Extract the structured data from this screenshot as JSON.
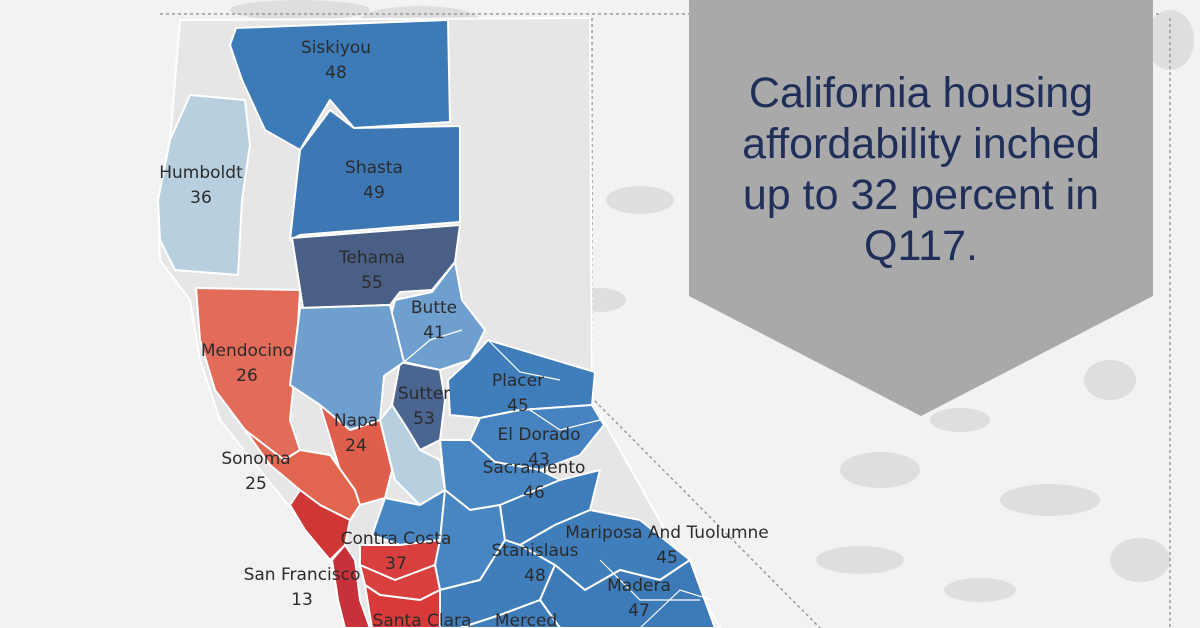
{
  "headline": "California housing affordability inched up to 32 percent in Q117.",
  "colors": {
    "background": "#f2f2f2",
    "land_unlabeled": "#e6e6e6",
    "terrain": "#dcdcdc",
    "callout_fill": "#a9a9a9",
    "headline_text": "#1f2f5a",
    "affordability_high": "#4a5f85",
    "affordability_mid": "#3d7ab8",
    "affordability_low": "#b8cfe0",
    "unaffordable_mid": "#e36b59",
    "unaffordable_high": "#cf3636"
  },
  "counties": [
    {
      "key": "siskiyou",
      "name": "Siskiyou",
      "value": "48",
      "color": "#3d7ab8"
    },
    {
      "key": "humboldt",
      "name": "Humboldt",
      "value": "36",
      "color": "#b8cfe0"
    },
    {
      "key": "shasta",
      "name": "Shasta",
      "value": "49",
      "color": "#3d78b5"
    },
    {
      "key": "tehama",
      "name": "Tehama",
      "value": "55",
      "color": "#4a5f85"
    },
    {
      "key": "butte",
      "name": "Butte",
      "value": "41",
      "color": "#6f9fcf"
    },
    {
      "key": "mendocino",
      "name": "Mendocino",
      "value": "26",
      "color": "#e36b59"
    },
    {
      "key": "sutter",
      "name": "Sutter",
      "value": "53",
      "color": "#4a6590"
    },
    {
      "key": "placer",
      "name": "Placer",
      "value": "45",
      "color": "#3f7dbb"
    },
    {
      "key": "napa",
      "name": "Napa",
      "value": "24",
      "color": "#e05e4c"
    },
    {
      "key": "el-dorado",
      "name": "El Dorado",
      "value": "43",
      "color": "#4683c0"
    },
    {
      "key": "sonoma",
      "name": "Sonoma",
      "value": "25",
      "color": "#e2654f"
    },
    {
      "key": "sacramento",
      "name": "Sacramento",
      "value": "46",
      "color": "#4886c3"
    },
    {
      "key": "contra-costa",
      "name": "Contra Costa",
      "value": "37",
      "color": "#d83f3e"
    },
    {
      "key": "stanislaus",
      "name": "Stanislaus",
      "value": "48",
      "color": "#3f7dbb"
    },
    {
      "key": "mariposa-tuolumne",
      "name": "Mariposa And Tuolumne",
      "value": "45",
      "color": "#3f7dbb"
    },
    {
      "key": "san-francisco",
      "name": "San Francisco",
      "value": "13",
      "color": "#c8303a"
    },
    {
      "key": "madera",
      "name": "Madera",
      "value": "47",
      "color": "#3d7ab8"
    },
    {
      "key": "santa-clara",
      "name": "Santa Clara",
      "value": "",
      "color": "#d83a3a"
    },
    {
      "key": "merced",
      "name": "Merced",
      "value": "",
      "color": "#3f7dbb"
    }
  ]
}
